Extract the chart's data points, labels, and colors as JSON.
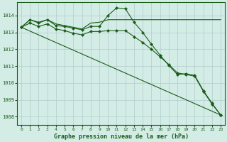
{
  "title": "Graphe pression niveau de la mer (hPa)",
  "bg_color": "#d4ece6",
  "grid_color": "#b0cccc",
  "line_color": "#1a5c1a",
  "xlim": [
    -0.5,
    23.5
  ],
  "ylim": [
    1007.5,
    1014.8
  ],
  "yticks": [
    1008,
    1009,
    1010,
    1011,
    1012,
    1013,
    1014
  ],
  "xticks": [
    0,
    1,
    2,
    3,
    4,
    5,
    6,
    7,
    8,
    9,
    10,
    11,
    12,
    13,
    14,
    15,
    16,
    17,
    18,
    19,
    20,
    21,
    22,
    23
  ],
  "series": [
    {
      "x": [
        0,
        1,
        2,
        3,
        4,
        5,
        6,
        7,
        8,
        9,
        10,
        11,
        12,
        13,
        14,
        15,
        16,
        17,
        18,
        19,
        20,
        21,
        22,
        23
      ],
      "y": [
        1013.3,
        1013.75,
        1013.55,
        1013.75,
        1013.4,
        1013.35,
        1013.25,
        1013.15,
        1013.35,
        1013.35,
        1014.0,
        1014.45,
        1014.4,
        1013.6,
        1013.0,
        1012.3,
        1011.65,
        1011.05,
        1010.5,
        1010.55,
        1010.45,
        1009.55,
        1008.8,
        1008.1
      ],
      "marker": true
    },
    {
      "x": [
        0,
        1,
        2,
        3,
        4,
        5,
        6,
        7,
        8,
        9,
        10,
        11,
        12,
        13,
        14,
        15,
        16,
        17,
        18,
        19,
        20,
        21,
        22,
        23
      ],
      "y": [
        1013.3,
        1013.75,
        1013.6,
        1013.75,
        1013.5,
        1013.4,
        1013.3,
        1013.2,
        1013.55,
        1013.6,
        1013.75,
        1013.75,
        1013.75,
        1013.75,
        1013.75,
        1013.75,
        1013.75,
        1013.75,
        1013.75,
        1013.75,
        1013.75,
        1013.75,
        1013.75,
        1013.75
      ],
      "marker": false
    },
    {
      "x": [
        0,
        1,
        2,
        3,
        4,
        5,
        6,
        7,
        8,
        9,
        10,
        11,
        12,
        13,
        14,
        15,
        16,
        17,
        18,
        19,
        20,
        21,
        22,
        23
      ],
      "y": [
        1013.3,
        1013.55,
        1013.35,
        1013.5,
        1013.2,
        1013.1,
        1012.95,
        1012.85,
        1013.05,
        1013.05,
        1013.1,
        1013.1,
        1013.1,
        1012.75,
        1012.4,
        1012.0,
        1011.55,
        1011.1,
        1010.6,
        1010.5,
        1010.4,
        1009.5,
        1008.75,
        1008.1
      ],
      "marker": true
    },
    {
      "x": [
        0,
        23
      ],
      "y": [
        1013.3,
        1008.1
      ],
      "marker": false
    }
  ]
}
